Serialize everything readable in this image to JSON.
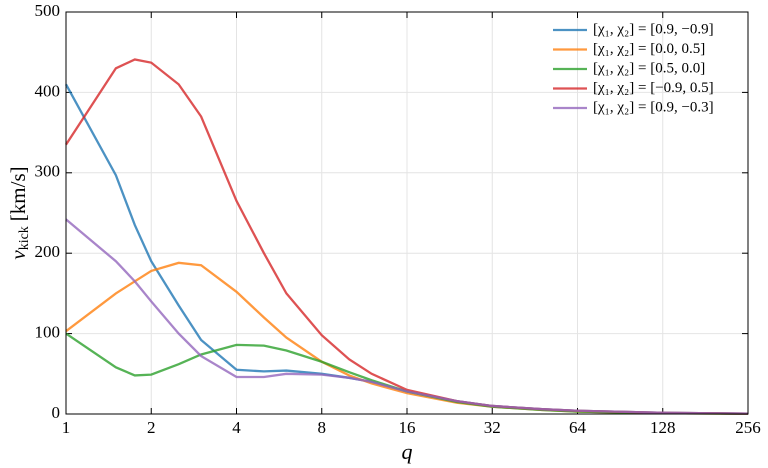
{
  "chart_data": {
    "type": "line",
    "x_label": "q",
    "y_label": {
      "symbol": "v",
      "subscript": "kick",
      "unit": "[km/s]"
    },
    "x": [
      1,
      1.5,
      1.75,
      2,
      2.5,
      3,
      4,
      5,
      6,
      8,
      10,
      12,
      16,
      24,
      32,
      48,
      64,
      128,
      256
    ],
    "xscale": "log2",
    "xlim": [
      1,
      256
    ],
    "xticks": [
      1,
      2,
      4,
      8,
      16,
      32,
      64,
      128,
      256
    ],
    "ylim": [
      0,
      500
    ],
    "yticks": [
      0,
      100,
      200,
      300,
      400,
      500
    ],
    "grid": true,
    "legend": "upper right",
    "series": [
      {
        "name": "[χ₁, χ₂] = [0.9, −0.9]",
        "color": "#1f77b4",
        "values": [
          410,
          297,
          235,
          190,
          135,
          92,
          55,
          53,
          54,
          50,
          45,
          40,
          28,
          16,
          10,
          6,
          4,
          1.5,
          0.5
        ]
      },
      {
        "name": "[χ₁, χ₂] = [0.0, 0.5]",
        "color": "#ff7f0e",
        "values": [
          103,
          150,
          165,
          178,
          188,
          185,
          152,
          120,
          95,
          65,
          48,
          38,
          26,
          14,
          9,
          5,
          3,
          1,
          0.3
        ]
      },
      {
        "name": "[χ₁, χ₂] = [0.5, 0.0]",
        "color": "#2ca02c",
        "values": [
          100,
          58,
          48,
          49,
          62,
          74,
          86,
          85,
          79,
          65,
          52,
          42,
          28,
          15,
          9,
          5,
          3,
          1,
          0.3
        ]
      },
      {
        "name": "[χ₁, χ₂] = [−0.9, 0.5]",
        "color": "#d62728",
        "values": [
          335,
          430,
          441,
          437,
          410,
          370,
          265,
          200,
          150,
          98,
          68,
          50,
          30,
          16,
          10,
          6,
          4,
          1.5,
          0.5
        ]
      },
      {
        "name": "[χ₁, χ₂] = [0.9, −0.3]",
        "color": "#9467bd",
        "values": [
          242,
          190,
          165,
          140,
          100,
          72,
          46,
          46,
          50,
          49,
          45,
          40,
          28,
          16,
          10,
          6,
          4,
          1.5,
          0.5
        ]
      }
    ]
  }
}
